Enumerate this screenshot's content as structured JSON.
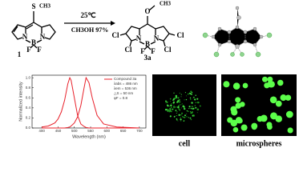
{
  "scheme": {
    "reactant_label": "1",
    "product_label": "3a",
    "condition_top": "25℃",
    "condition_bottom": "CH3OH 97%",
    "reactant_atoms": [
      "S",
      "CH3",
      "N",
      "B",
      "N",
      "F",
      "F"
    ],
    "product_atoms": [
      "O",
      "CH3",
      "N",
      "B",
      "N",
      "F",
      "F",
      "Cl",
      "Cl",
      "Cl",
      "Cl"
    ]
  },
  "chart_data": {
    "type": "line",
    "x_label": "Wavelength (nm)",
    "y_label": "Normalized intensity",
    "x": [
      400,
      420,
      440,
      450,
      460,
      470,
      480,
      486,
      490,
      500,
      510,
      520,
      530,
      536,
      545,
      555,
      570,
      590,
      630,
      700
    ],
    "series": [
      {
        "name": "Compound 3a",
        "color": "#e8202a",
        "values": [
          0.02,
          0.04,
          0.1,
          0.18,
          0.32,
          0.55,
          0.88,
          1.0,
          0.95,
          0.6,
          0.25,
          0.08,
          0.03,
          0.01,
          0,
          0,
          0,
          0,
          0,
          0
        ]
      },
      {
        "color": "#e8202a",
        "values": [
          0,
          0,
          0,
          0,
          0,
          0,
          0.01,
          0.02,
          0.04,
          0.1,
          0.22,
          0.45,
          0.8,
          1.0,
          0.9,
          0.6,
          0.25,
          0.08,
          0.02,
          0
        ]
      }
    ],
    "annotations": [
      "λabs = 486 nm",
      "λem = 536 nm",
      "△S = 50 nm",
      "φF = 0.8"
    ],
    "xlim": [
      370,
      720
    ],
    "ylim": [
      0,
      1.05
    ],
    "xticks": [
      400,
      450,
      500,
      550,
      600,
      650,
      700
    ],
    "yticks": [
      {
        "value": 0,
        "label": "0.0"
      },
      0.2,
      0.4,
      0.6,
      0.8,
      {
        "value": 1,
        "label": "1.0"
      }
    ]
  },
  "images": {
    "cell": "cell",
    "microspheres": "microspheres"
  }
}
